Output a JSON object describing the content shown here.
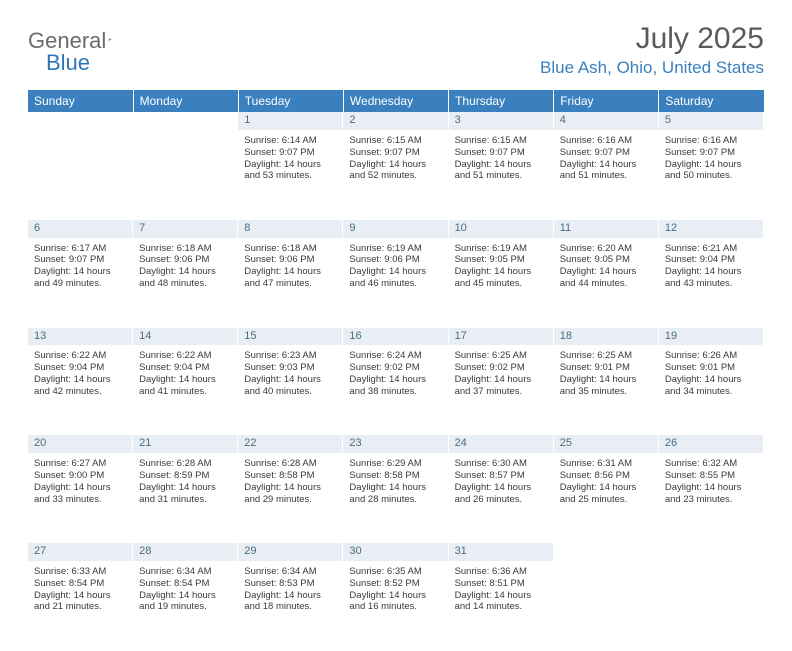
{
  "logo": {
    "general": "General",
    "blue": "Blue"
  },
  "title": {
    "month": "July 2025",
    "location": "Blue Ash, Ohio, United States"
  },
  "colors": {
    "header_bg": "#3a80be",
    "daynum_bg": "#e8eef3",
    "daynum_text": "#4a6b85",
    "text": "#3a3a3a",
    "logo_general": "#6b6b6b",
    "logo_blue": "#2f76b8",
    "location_text": "#3a80be",
    "month_text": "#5a5a5a"
  },
  "weekdays": [
    "Sunday",
    "Monday",
    "Tuesday",
    "Wednesday",
    "Thursday",
    "Friday",
    "Saturday"
  ],
  "weeks": [
    {
      "days": [
        {
          "num": "",
          "sunrise": "",
          "sunset": "",
          "daylight1": "",
          "daylight2": ""
        },
        {
          "num": "",
          "sunrise": "",
          "sunset": "",
          "daylight1": "",
          "daylight2": ""
        },
        {
          "num": "1",
          "sunrise": "Sunrise: 6:14 AM",
          "sunset": "Sunset: 9:07 PM",
          "daylight1": "Daylight: 14 hours",
          "daylight2": "and 53 minutes."
        },
        {
          "num": "2",
          "sunrise": "Sunrise: 6:15 AM",
          "sunset": "Sunset: 9:07 PM",
          "daylight1": "Daylight: 14 hours",
          "daylight2": "and 52 minutes."
        },
        {
          "num": "3",
          "sunrise": "Sunrise: 6:15 AM",
          "sunset": "Sunset: 9:07 PM",
          "daylight1": "Daylight: 14 hours",
          "daylight2": "and 51 minutes."
        },
        {
          "num": "4",
          "sunrise": "Sunrise: 6:16 AM",
          "sunset": "Sunset: 9:07 PM",
          "daylight1": "Daylight: 14 hours",
          "daylight2": "and 51 minutes."
        },
        {
          "num": "5",
          "sunrise": "Sunrise: 6:16 AM",
          "sunset": "Sunset: 9:07 PM",
          "daylight1": "Daylight: 14 hours",
          "daylight2": "and 50 minutes."
        }
      ]
    },
    {
      "days": [
        {
          "num": "6",
          "sunrise": "Sunrise: 6:17 AM",
          "sunset": "Sunset: 9:07 PM",
          "daylight1": "Daylight: 14 hours",
          "daylight2": "and 49 minutes."
        },
        {
          "num": "7",
          "sunrise": "Sunrise: 6:18 AM",
          "sunset": "Sunset: 9:06 PM",
          "daylight1": "Daylight: 14 hours",
          "daylight2": "and 48 minutes."
        },
        {
          "num": "8",
          "sunrise": "Sunrise: 6:18 AM",
          "sunset": "Sunset: 9:06 PM",
          "daylight1": "Daylight: 14 hours",
          "daylight2": "and 47 minutes."
        },
        {
          "num": "9",
          "sunrise": "Sunrise: 6:19 AM",
          "sunset": "Sunset: 9:06 PM",
          "daylight1": "Daylight: 14 hours",
          "daylight2": "and 46 minutes."
        },
        {
          "num": "10",
          "sunrise": "Sunrise: 6:19 AM",
          "sunset": "Sunset: 9:05 PM",
          "daylight1": "Daylight: 14 hours",
          "daylight2": "and 45 minutes."
        },
        {
          "num": "11",
          "sunrise": "Sunrise: 6:20 AM",
          "sunset": "Sunset: 9:05 PM",
          "daylight1": "Daylight: 14 hours",
          "daylight2": "and 44 minutes."
        },
        {
          "num": "12",
          "sunrise": "Sunrise: 6:21 AM",
          "sunset": "Sunset: 9:04 PM",
          "daylight1": "Daylight: 14 hours",
          "daylight2": "and 43 minutes."
        }
      ]
    },
    {
      "days": [
        {
          "num": "13",
          "sunrise": "Sunrise: 6:22 AM",
          "sunset": "Sunset: 9:04 PM",
          "daylight1": "Daylight: 14 hours",
          "daylight2": "and 42 minutes."
        },
        {
          "num": "14",
          "sunrise": "Sunrise: 6:22 AM",
          "sunset": "Sunset: 9:04 PM",
          "daylight1": "Daylight: 14 hours",
          "daylight2": "and 41 minutes."
        },
        {
          "num": "15",
          "sunrise": "Sunrise: 6:23 AM",
          "sunset": "Sunset: 9:03 PM",
          "daylight1": "Daylight: 14 hours",
          "daylight2": "and 40 minutes."
        },
        {
          "num": "16",
          "sunrise": "Sunrise: 6:24 AM",
          "sunset": "Sunset: 9:02 PM",
          "daylight1": "Daylight: 14 hours",
          "daylight2": "and 38 minutes."
        },
        {
          "num": "17",
          "sunrise": "Sunrise: 6:25 AM",
          "sunset": "Sunset: 9:02 PM",
          "daylight1": "Daylight: 14 hours",
          "daylight2": "and 37 minutes."
        },
        {
          "num": "18",
          "sunrise": "Sunrise: 6:25 AM",
          "sunset": "Sunset: 9:01 PM",
          "daylight1": "Daylight: 14 hours",
          "daylight2": "and 35 minutes."
        },
        {
          "num": "19",
          "sunrise": "Sunrise: 6:26 AM",
          "sunset": "Sunset: 9:01 PM",
          "daylight1": "Daylight: 14 hours",
          "daylight2": "and 34 minutes."
        }
      ]
    },
    {
      "days": [
        {
          "num": "20",
          "sunrise": "Sunrise: 6:27 AM",
          "sunset": "Sunset: 9:00 PM",
          "daylight1": "Daylight: 14 hours",
          "daylight2": "and 33 minutes."
        },
        {
          "num": "21",
          "sunrise": "Sunrise: 6:28 AM",
          "sunset": "Sunset: 8:59 PM",
          "daylight1": "Daylight: 14 hours",
          "daylight2": "and 31 minutes."
        },
        {
          "num": "22",
          "sunrise": "Sunrise: 6:28 AM",
          "sunset": "Sunset: 8:58 PM",
          "daylight1": "Daylight: 14 hours",
          "daylight2": "and 29 minutes."
        },
        {
          "num": "23",
          "sunrise": "Sunrise: 6:29 AM",
          "sunset": "Sunset: 8:58 PM",
          "daylight1": "Daylight: 14 hours",
          "daylight2": "and 28 minutes."
        },
        {
          "num": "24",
          "sunrise": "Sunrise: 6:30 AM",
          "sunset": "Sunset: 8:57 PM",
          "daylight1": "Daylight: 14 hours",
          "daylight2": "and 26 minutes."
        },
        {
          "num": "25",
          "sunrise": "Sunrise: 6:31 AM",
          "sunset": "Sunset: 8:56 PM",
          "daylight1": "Daylight: 14 hours",
          "daylight2": "and 25 minutes."
        },
        {
          "num": "26",
          "sunrise": "Sunrise: 6:32 AM",
          "sunset": "Sunset: 8:55 PM",
          "daylight1": "Daylight: 14 hours",
          "daylight2": "and 23 minutes."
        }
      ]
    },
    {
      "days": [
        {
          "num": "27",
          "sunrise": "Sunrise: 6:33 AM",
          "sunset": "Sunset: 8:54 PM",
          "daylight1": "Daylight: 14 hours",
          "daylight2": "and 21 minutes."
        },
        {
          "num": "28",
          "sunrise": "Sunrise: 6:34 AM",
          "sunset": "Sunset: 8:54 PM",
          "daylight1": "Daylight: 14 hours",
          "daylight2": "and 19 minutes."
        },
        {
          "num": "29",
          "sunrise": "Sunrise: 6:34 AM",
          "sunset": "Sunset: 8:53 PM",
          "daylight1": "Daylight: 14 hours",
          "daylight2": "and 18 minutes."
        },
        {
          "num": "30",
          "sunrise": "Sunrise: 6:35 AM",
          "sunset": "Sunset: 8:52 PM",
          "daylight1": "Daylight: 14 hours",
          "daylight2": "and 16 minutes."
        },
        {
          "num": "31",
          "sunrise": "Sunrise: 6:36 AM",
          "sunset": "Sunset: 8:51 PM",
          "daylight1": "Daylight: 14 hours",
          "daylight2": "and 14 minutes."
        },
        {
          "num": "",
          "sunrise": "",
          "sunset": "",
          "daylight1": "",
          "daylight2": ""
        },
        {
          "num": "",
          "sunrise": "",
          "sunset": "",
          "daylight1": "",
          "daylight2": ""
        }
      ]
    }
  ]
}
